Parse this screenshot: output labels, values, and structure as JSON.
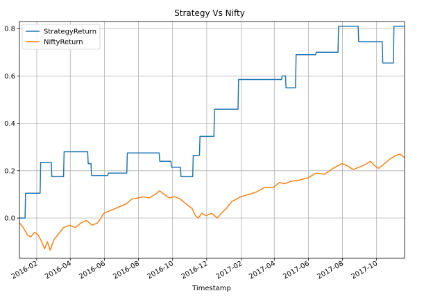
{
  "chart_data": {
    "type": "line",
    "title": "Strategy Vs Nifty",
    "xlabel": "Timestamp",
    "ylabel": "",
    "xlim": [
      "2016-01-01",
      "2017-11-20"
    ],
    "ylim": [
      -0.17,
      0.83
    ],
    "grid": true,
    "legend_position": "upper left",
    "x_ticks": [
      "2016-02-01",
      "2016-04-01",
      "2016-06-01",
      "2016-08-01",
      "2016-10-01",
      "2016-12-01",
      "2017-02-01",
      "2017-04-01",
      "2017-06-01",
      "2017-08-01",
      "2017-10-01"
    ],
    "x_tick_labels": [
      "2016-02",
      "2016-04",
      "2016-06",
      "2016-08",
      "2016-10",
      "2016-12",
      "2017-02",
      "2017-04",
      "2017-06",
      "2017-08",
      "2017-10"
    ],
    "y_ticks": [
      0.0,
      0.2,
      0.4,
      0.6,
      0.8
    ],
    "y_tick_labels": [
      "0.0",
      "0.2",
      "0.4",
      "0.6",
      "0.8"
    ],
    "series": [
      {
        "name": "StrategyReturn",
        "color": "#1f77b4",
        "step": true,
        "points": [
          [
            "2016-01-01",
            0.0
          ],
          [
            "2016-01-11",
            0.0
          ],
          [
            "2016-01-12",
            0.105
          ],
          [
            "2016-02-07",
            0.105
          ],
          [
            "2016-02-08",
            0.235
          ],
          [
            "2016-02-27",
            0.235
          ],
          [
            "2016-02-28",
            0.175
          ],
          [
            "2016-03-20",
            0.175
          ],
          [
            "2016-03-21",
            0.28
          ],
          [
            "2016-05-02",
            0.28
          ],
          [
            "2016-05-03",
            0.23
          ],
          [
            "2016-05-08",
            0.23
          ],
          [
            "2016-05-09",
            0.18
          ],
          [
            "2016-06-07",
            0.18
          ],
          [
            "2016-06-08",
            0.19
          ],
          [
            "2016-07-11",
            0.19
          ],
          [
            "2016-07-12",
            0.275
          ],
          [
            "2016-09-07",
            0.275
          ],
          [
            "2016-09-08",
            0.24
          ],
          [
            "2016-09-28",
            0.24
          ],
          [
            "2016-09-29",
            0.215
          ],
          [
            "2016-10-15",
            0.215
          ],
          [
            "2016-10-16",
            0.175
          ],
          [
            "2016-11-06",
            0.175
          ],
          [
            "2016-11-07",
            0.265
          ],
          [
            "2016-11-18",
            0.265
          ],
          [
            "2016-11-19",
            0.345
          ],
          [
            "2016-12-14",
            0.345
          ],
          [
            "2016-12-15",
            0.46
          ],
          [
            "2017-01-26",
            0.46
          ],
          [
            "2017-01-27",
            0.585
          ],
          [
            "2017-04-14",
            0.585
          ],
          [
            "2017-04-15",
            0.6
          ],
          [
            "2017-04-21",
            0.6
          ],
          [
            "2017-04-22",
            0.55
          ],
          [
            "2017-05-09",
            0.55
          ],
          [
            "2017-05-10",
            0.69
          ],
          [
            "2017-06-14",
            0.69
          ],
          [
            "2017-06-15",
            0.7
          ],
          [
            "2017-07-24",
            0.7
          ],
          [
            "2017-07-25",
            0.81
          ],
          [
            "2017-08-29",
            0.81
          ],
          [
            "2017-08-30",
            0.745
          ],
          [
            "2017-10-11",
            0.745
          ],
          [
            "2017-10-12",
            0.655
          ],
          [
            "2017-10-31",
            0.655
          ],
          [
            "2017-11-01",
            0.81
          ],
          [
            "2017-11-20",
            0.81
          ]
        ]
      },
      {
        "name": "NiftyReturn",
        "color": "#ff7f0e",
        "step": false,
        "points": [
          [
            "2016-01-01",
            -0.02
          ],
          [
            "2016-01-08",
            -0.04
          ],
          [
            "2016-01-15",
            -0.07
          ],
          [
            "2016-01-21",
            -0.08
          ],
          [
            "2016-01-28",
            -0.06
          ],
          [
            "2016-02-03",
            -0.07
          ],
          [
            "2016-02-10",
            -0.1
          ],
          [
            "2016-02-15",
            -0.13
          ],
          [
            "2016-02-20",
            -0.1
          ],
          [
            "2016-02-25",
            -0.135
          ],
          [
            "2016-03-03",
            -0.09
          ],
          [
            "2016-03-10",
            -0.07
          ],
          [
            "2016-03-20",
            -0.04
          ],
          [
            "2016-03-31",
            -0.03
          ],
          [
            "2016-04-10",
            -0.04
          ],
          [
            "2016-04-20",
            -0.02
          ],
          [
            "2016-04-30",
            -0.01
          ],
          [
            "2016-05-10",
            -0.03
          ],
          [
            "2016-05-20",
            -0.02
          ],
          [
            "2016-05-31",
            0.02
          ],
          [
            "2016-06-10",
            0.03
          ],
          [
            "2016-06-20",
            0.04
          ],
          [
            "2016-06-30",
            0.05
          ],
          [
            "2016-07-10",
            0.06
          ],
          [
            "2016-07-20",
            0.08
          ],
          [
            "2016-07-31",
            0.085
          ],
          [
            "2016-08-10",
            0.09
          ],
          [
            "2016-08-20",
            0.085
          ],
          [
            "2016-08-31",
            0.1
          ],
          [
            "2016-09-08",
            0.115
          ],
          [
            "2016-09-16",
            0.1
          ],
          [
            "2016-09-25",
            0.085
          ],
          [
            "2016-10-05",
            0.09
          ],
          [
            "2016-10-15",
            0.08
          ],
          [
            "2016-10-25",
            0.06
          ],
          [
            "2016-11-05",
            0.04
          ],
          [
            "2016-11-11",
            0.01
          ],
          [
            "2016-11-16",
            0.0
          ],
          [
            "2016-11-22",
            0.02
          ],
          [
            "2016-11-30",
            0.01
          ],
          [
            "2016-12-10",
            0.02
          ],
          [
            "2016-12-20",
            0.0
          ],
          [
            "2016-12-27",
            0.02
          ],
          [
            "2017-01-05",
            0.04
          ],
          [
            "2017-01-15",
            0.07
          ],
          [
            "2017-01-31",
            0.09
          ],
          [
            "2017-02-15",
            0.1
          ],
          [
            "2017-02-28",
            0.11
          ],
          [
            "2017-03-15",
            0.13
          ],
          [
            "2017-03-31",
            0.13
          ],
          [
            "2017-04-10",
            0.15
          ],
          [
            "2017-04-20",
            0.145
          ],
          [
            "2017-04-30",
            0.155
          ],
          [
            "2017-05-15",
            0.16
          ],
          [
            "2017-05-31",
            0.17
          ],
          [
            "2017-06-15",
            0.19
          ],
          [
            "2017-06-30",
            0.185
          ],
          [
            "2017-07-15",
            0.21
          ],
          [
            "2017-07-31",
            0.23
          ],
          [
            "2017-08-10",
            0.22
          ],
          [
            "2017-08-20",
            0.205
          ],
          [
            "2017-08-31",
            0.215
          ],
          [
            "2017-09-10",
            0.225
          ],
          [
            "2017-09-20",
            0.24
          ],
          [
            "2017-09-28",
            0.22
          ],
          [
            "2017-10-05",
            0.21
          ],
          [
            "2017-10-15",
            0.23
          ],
          [
            "2017-10-25",
            0.25
          ],
          [
            "2017-11-05",
            0.265
          ],
          [
            "2017-11-12",
            0.27
          ],
          [
            "2017-11-20",
            0.255
          ]
        ]
      }
    ]
  }
}
